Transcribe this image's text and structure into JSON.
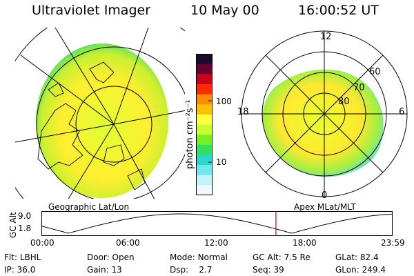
{
  "header": {
    "instrument": "Ultraviolet Imager",
    "date": "10 May 00",
    "time": "16:00:52 UT"
  },
  "left_panel": {
    "caption": "Geographic Lat/Lon"
  },
  "right_panel": {
    "caption": "Apex MLat/MLT",
    "mlt_labels": [
      "12",
      "18",
      "6",
      "0"
    ],
    "lat_labels": [
      "60",
      "70",
      "80"
    ]
  },
  "colorbar": {
    "unit_label": "photon cm⁻²s⁻¹",
    "ticks": [
      "100",
      "10"
    ],
    "colors": [
      "#1a0a2a",
      "#6a0030",
      "#c8001e",
      "#ff2a00",
      "#ff8c00",
      "#ffc000",
      "#ffff40",
      "#c8ff30",
      "#78f020",
      "#30e060",
      "#28d8c8",
      "#70e8f0",
      "#c0f4f8",
      "#f0f8ff"
    ]
  },
  "altitude_plot": {
    "ylabel": "GC Alt",
    "yticks": [
      "9.0",
      "1.8"
    ],
    "xticks": [
      "00:00",
      "06:00",
      "12:00",
      "18:00",
      "23:59"
    ],
    "current_time_hours": 16.01
  },
  "info": {
    "row1": [
      {
        "label": "Flt:",
        "value": "LBHL"
      },
      {
        "label": "Door:",
        "value": "Open"
      },
      {
        "label": "Mode:",
        "value": "Normal"
      },
      {
        "label": "GC Alt:",
        "value": "7.5 Re"
      },
      {
        "label": "GLat:",
        "value": "82.4"
      }
    ],
    "row2": [
      {
        "label": "IP:",
        "value": "36.0"
      },
      {
        "label": "Gain:",
        "value": "13"
      },
      {
        "label": "Dsp:",
        "value": "2.7"
      },
      {
        "label": "Seq:",
        "value": "39"
      },
      {
        "label": "GLon:",
        "value": "249.4"
      }
    ]
  }
}
